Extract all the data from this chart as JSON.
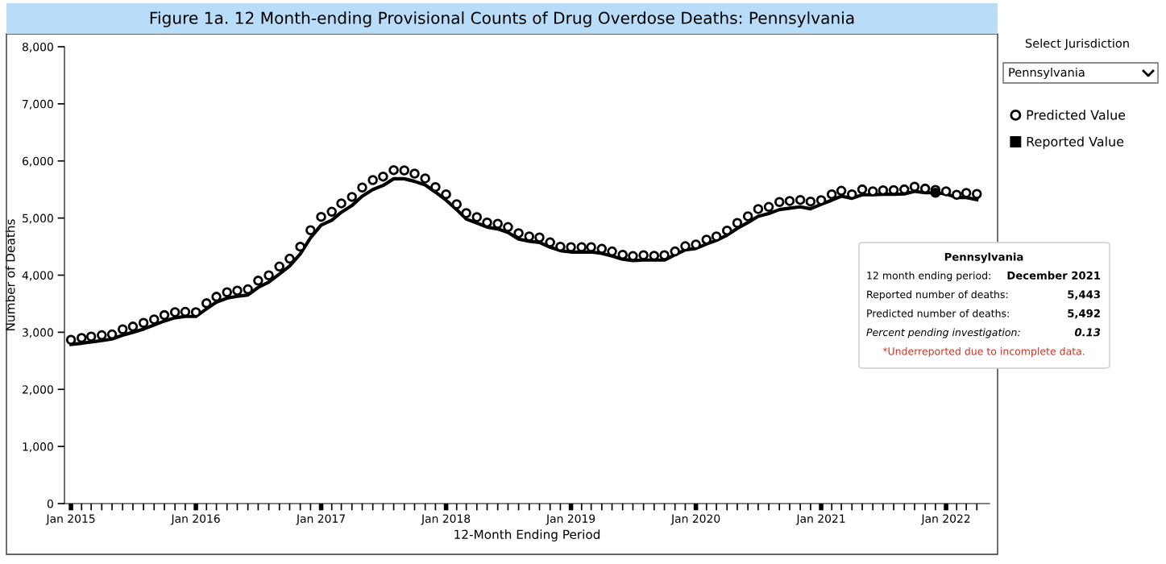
{
  "chart_data": {
    "type": "line",
    "title": "Figure 1a. 12 Month-ending Provisional Counts of Drug Overdose Deaths: Pennsylvania",
    "xlabel": "12-Month Ending Period",
    "ylabel": "Number of Deaths",
    "x": [
      "2015-01",
      "2015-02",
      "2015-03",
      "2015-04",
      "2015-05",
      "2015-06",
      "2015-07",
      "2015-08",
      "2015-09",
      "2015-10",
      "2015-11",
      "2015-12",
      "2016-01",
      "2016-02",
      "2016-03",
      "2016-04",
      "2016-05",
      "2016-06",
      "2016-07",
      "2016-08",
      "2016-09",
      "2016-10",
      "2016-11",
      "2016-12",
      "2017-01",
      "2017-02",
      "2017-03",
      "2017-04",
      "2017-05",
      "2017-06",
      "2017-07",
      "2017-08",
      "2017-09",
      "2017-10",
      "2017-11",
      "2017-12",
      "2018-01",
      "2018-02",
      "2018-03",
      "2018-04",
      "2018-05",
      "2018-06",
      "2018-07",
      "2018-08",
      "2018-09",
      "2018-10",
      "2018-11",
      "2018-12",
      "2019-01",
      "2019-02",
      "2019-03",
      "2019-04",
      "2019-05",
      "2019-06",
      "2019-07",
      "2019-08",
      "2019-09",
      "2019-10",
      "2019-11",
      "2019-12",
      "2020-01",
      "2020-02",
      "2020-03",
      "2020-04",
      "2020-05",
      "2020-06",
      "2020-07",
      "2020-08",
      "2020-09",
      "2020-10",
      "2020-11",
      "2020-12",
      "2021-01",
      "2021-02",
      "2021-03",
      "2021-04",
      "2021-05",
      "2021-06",
      "2021-07",
      "2021-08",
      "2021-09",
      "2021-10",
      "2021-11",
      "2021-12",
      "2022-01",
      "2022-02",
      "2022-03",
      "2022-04"
    ],
    "series": [
      {
        "name": "Predicted Value",
        "type": "scatter",
        "marker": "circle",
        "color": "#000000",
        "values": [
          2868,
          2901,
          2924,
          2948,
          2962,
          3051,
          3099,
          3164,
          3225,
          3300,
          3352,
          3357,
          3352,
          3508,
          3621,
          3700,
          3728,
          3752,
          3903,
          3996,
          4151,
          4288,
          4499,
          4786,
          5021,
          5110,
          5257,
          5370,
          5535,
          5665,
          5726,
          5839,
          5834,
          5778,
          5694,
          5543,
          5416,
          5242,
          5087,
          5017,
          4922,
          4899,
          4842,
          4735,
          4678,
          4659,
          4574,
          4499,
          4490,
          4490,
          4490,
          4461,
          4415,
          4358,
          4334,
          4349,
          4340,
          4349,
          4415,
          4507,
          4537,
          4622,
          4678,
          4781,
          4913,
          5031,
          5158,
          5195,
          5280,
          5299,
          5317,
          5289,
          5313,
          5416,
          5477,
          5416,
          5501,
          5468,
          5486,
          5490,
          5501,
          5548,
          5515,
          5492,
          5468,
          5407,
          5440,
          5421
        ]
      },
      {
        "name": "Reported Value",
        "line_style": "solid",
        "color": "#000000",
        "values": [
          2788,
          2807,
          2830,
          2853,
          2882,
          2948,
          3000,
          3056,
          3127,
          3197,
          3254,
          3277,
          3277,
          3409,
          3526,
          3597,
          3630,
          3653,
          3785,
          3879,
          4020,
          4161,
          4372,
          4654,
          4876,
          4960,
          5101,
          5219,
          5383,
          5500,
          5571,
          5688,
          5688,
          5642,
          5581,
          5454,
          5313,
          5148,
          4983,
          4913,
          4842,
          4810,
          4749,
          4631,
          4594,
          4574,
          4490,
          4429,
          4405,
          4405,
          4405,
          4382,
          4334,
          4278,
          4255,
          4264,
          4264,
          4264,
          4358,
          4443,
          4467,
          4546,
          4608,
          4701,
          4819,
          4922,
          5031,
          5078,
          5148,
          5172,
          5195,
          5162,
          5242,
          5313,
          5383,
          5346,
          5407,
          5407,
          5416,
          5416,
          5421,
          5468,
          5444,
          5443,
          5421,
          5360,
          5360,
          5322
        ]
      },
      {
        "type": "scatter",
        "marker": "circle",
        "color": "#000000",
        "x": [
          "2021-12"
        ],
        "values": [
          5443
        ]
      }
    ],
    "xlim": [
      "2014-12-13",
      "2022-05-08"
    ],
    "xticks": [
      {
        "value": "2015-01",
        "label": "Jan 2015"
      },
      {
        "value": "2015-02",
        "label": null
      },
      {
        "value": "2015-03",
        "label": null
      },
      {
        "value": "2015-04",
        "label": null
      },
      {
        "value": "2015-05",
        "label": null
      },
      {
        "value": "2015-06",
        "label": null
      },
      {
        "value": "2015-07",
        "label": null
      },
      {
        "value": "2015-08",
        "label": null
      },
      {
        "value": "2015-09",
        "label": null
      },
      {
        "value": "2015-10",
        "label": null
      },
      {
        "value": "2015-11",
        "label": null
      },
      {
        "value": "2015-12",
        "label": null
      },
      {
        "value": "2016-01",
        "label": "Jan 2016"
      },
      {
        "value": "2016-02",
        "label": null
      },
      {
        "value": "2016-03",
        "label": null
      },
      {
        "value": "2016-04",
        "label": null
      },
      {
        "value": "2016-05",
        "label": null
      },
      {
        "value": "2016-06",
        "label": null
      },
      {
        "value": "2016-07",
        "label": null
      },
      {
        "value": "2016-08",
        "label": null
      },
      {
        "value": "2016-09",
        "label": null
      },
      {
        "value": "2016-10",
        "label": null
      },
      {
        "value": "2016-11",
        "label": null
      },
      {
        "value": "2016-12",
        "label": null
      },
      {
        "value": "2017-01",
        "label": "Jan 2017"
      },
      {
        "value": "2017-02",
        "label": null
      },
      {
        "value": "2017-03",
        "label": null
      },
      {
        "value": "2017-04",
        "label": null
      },
      {
        "value": "2017-05",
        "label": null
      },
      {
        "value": "2017-06",
        "label": null
      },
      {
        "value": "2017-07",
        "label": null
      },
      {
        "value": "2017-08",
        "label": null
      },
      {
        "value": "2017-09",
        "label": null
      },
      {
        "value": "2017-10",
        "label": null
      },
      {
        "value": "2017-11",
        "label": null
      },
      {
        "value": "2017-12",
        "label": null
      },
      {
        "value": "2018-01",
        "label": "Jan 2018"
      },
      {
        "value": "2018-02",
        "label": null
      },
      {
        "value": "2018-03",
        "label": null
      },
      {
        "value": "2018-04",
        "label": null
      },
      {
        "value": "2018-05",
        "label": null
      },
      {
        "value": "2018-06",
        "label": null
      },
      {
        "value": "2018-07",
        "label": null
      },
      {
        "value": "2018-08",
        "label": null
      },
      {
        "value": "2018-09",
        "label": null
      },
      {
        "value": "2018-10",
        "label": null
      },
      {
        "value": "2018-11",
        "label": null
      },
      {
        "value": "2018-12",
        "label": null
      },
      {
        "value": "2019-01",
        "label": "Jan 2019"
      },
      {
        "value": "2019-02",
        "label": null
      },
      {
        "value": "2019-03",
        "label": null
      },
      {
        "value": "2019-04",
        "label": null
      },
      {
        "value": "2019-05",
        "label": null
      },
      {
        "value": "2019-06",
        "label": null
      },
      {
        "value": "2019-07",
        "label": null
      },
      {
        "value": "2019-08",
        "label": null
      },
      {
        "value": "2019-09",
        "label": null
      },
      {
        "value": "2019-10",
        "label": null
      },
      {
        "value": "2019-11",
        "label": null
      },
      {
        "value": "2019-12",
        "label": null
      },
      {
        "value": "2020-01",
        "label": "Jan 2020"
      },
      {
        "value": "2020-02",
        "label": null
      },
      {
        "value": "2020-03",
        "label": null
      },
      {
        "value": "2020-04",
        "label": null
      },
      {
        "value": "2020-05",
        "label": null
      },
      {
        "value": "2020-06",
        "label": null
      },
      {
        "value": "2020-07",
        "label": null
      },
      {
        "value": "2020-08",
        "label": null
      },
      {
        "value": "2020-09",
        "label": null
      },
      {
        "value": "2020-10",
        "label": null
      },
      {
        "value": "2020-11",
        "label": null
      },
      {
        "value": "2020-12",
        "label": null
      },
      {
        "value": "2021-01",
        "label": "Jan 2021"
      },
      {
        "value": "2021-02",
        "label": null
      },
      {
        "value": "2021-03",
        "label": null
      },
      {
        "value": "2021-04",
        "label": null
      },
      {
        "value": "2021-05",
        "label": null
      },
      {
        "value": "2021-06",
        "label": null
      },
      {
        "value": "2021-07",
        "label": null
      },
      {
        "value": "2021-08",
        "label": null
      },
      {
        "value": "2021-09",
        "label": null
      },
      {
        "value": "2021-10",
        "label": null
      },
      {
        "value": "2021-11",
        "label": null
      },
      {
        "value": "2021-12",
        "label": null
      },
      {
        "value": "2022-01",
        "label": "Jan 2022"
      },
      {
        "value": "2022-02",
        "label": null
      },
      {
        "value": "2022-03",
        "label": null
      },
      {
        "value": "2022-04",
        "label": null
      }
    ],
    "ylim": [
      0,
      8000
    ],
    "yticks": [
      0,
      {
        "value": 1000,
        "label": "1,000"
      },
      {
        "value": 2000,
        "label": "2,000"
      },
      {
        "value": 3000,
        "label": "3,000"
      },
      {
        "value": 4000,
        "label": "4,000"
      },
      {
        "value": 5000,
        "label": "5,000"
      },
      {
        "value": 6000,
        "label": "6,000"
      },
      {
        "value": 7000,
        "label": "7,000"
      },
      {
        "value": 8000,
        "label": "8,000"
      }
    ],
    "grid": false,
    "legend": "right",
    "annotations": [
      "Select Jurisdiction",
      "Pennsylvania",
      "Pennsylvania",
      "12 month ending period:",
      "December 2021",
      "Reported number of deaths:",
      "5,443",
      "Predicted number of deaths:",
      "5,492",
      "Percent pending investigation:",
      "0.13",
      "*Underreported due to incomplete data."
    ]
  }
}
